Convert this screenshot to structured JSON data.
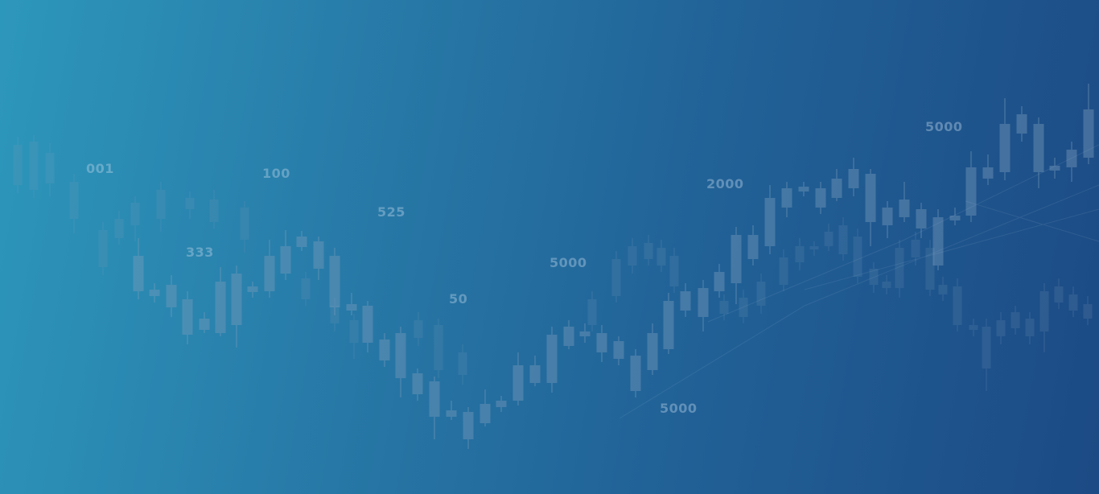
{
  "background": {
    "gradient_colors": [
      "#2d97bb",
      "#2778a6",
      "#216297",
      "#1c4a84"
    ],
    "candle_color": "#7a9cbd"
  },
  "labels": [
    "001",
    "100",
    "333",
    "525",
    "5000",
    "50",
    "2000",
    "5000",
    "5000"
  ]
}
